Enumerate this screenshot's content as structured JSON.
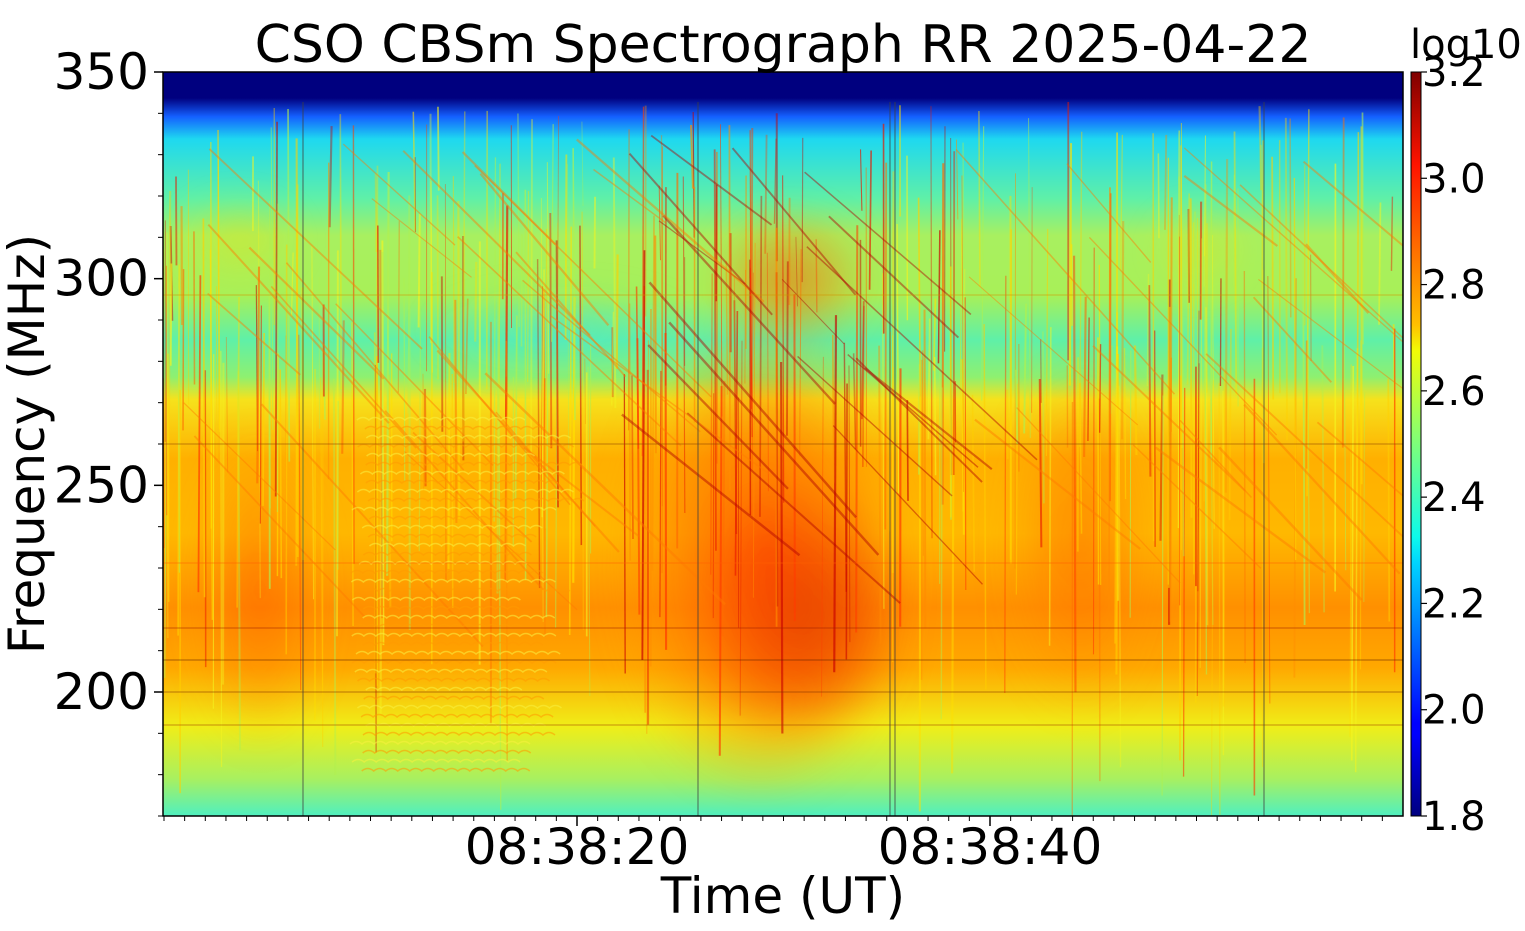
{
  "chart_data": {
    "type": "heatmap",
    "title": "CSO CBSm Spectrograph RR 2025-04-22",
    "xlabel": "Time (UT)",
    "ylabel": "Frequency (MHz)",
    "colorbar_label": "log10",
    "x_ticks": [
      "08:38:20",
      "08:38:40"
    ],
    "y_ticks": [
      "200",
      "250",
      "300",
      "350"
    ],
    "y_tick_values": [
      200,
      250,
      300,
      350
    ],
    "ylim": [
      170,
      350
    ],
    "colorbar_ticks": [
      "1.8",
      "2.0",
      "2.2",
      "2.4",
      "2.6",
      "2.8",
      "3.0",
      "3.2"
    ],
    "colorbar_tick_values": [
      1.8,
      2.0,
      2.2,
      2.4,
      2.6,
      2.8,
      3.0,
      3.2
    ],
    "clim": [
      1.8,
      3.2
    ],
    "colormap": "jet",
    "grid": false
  }
}
